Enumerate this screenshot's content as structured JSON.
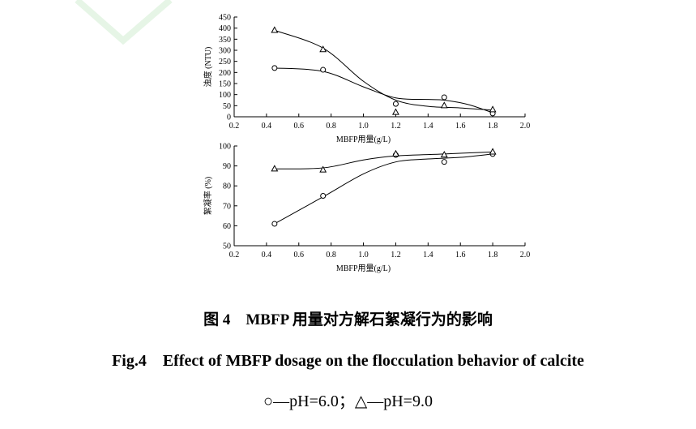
{
  "figure": {
    "caption_cn": "图 4　MBFP 用量对方解石絮凝行为的影响",
    "caption_en": "Fig.4　Effect of MBFP dosage on the flocculation behavior of calcite",
    "legend_text": "○—pH=6.0；△—pH=9.0"
  },
  "chart_data": [
    {
      "type": "line",
      "xlabel": "MBFP用量(g/L)",
      "ylabel": "浊度 (NTU)",
      "xlim": [
        0.2,
        2.0
      ],
      "ylim": [
        0,
        450
      ],
      "xticks": [
        "0.2",
        "0.4",
        "0.6",
        "0.8",
        "1.0",
        "1.2",
        "1.4",
        "1.6",
        "1.8",
        "2.0"
      ],
      "yticks": [
        "0",
        "50",
        "100",
        "150",
        "200",
        "250",
        "300",
        "350",
        "400",
        "450"
      ],
      "grid": false,
      "series": [
        {
          "name": "pH=6.0",
          "marker": "circle",
          "points": [
            [
              0.45,
              220
            ],
            [
              0.75,
              212
            ],
            [
              1.2,
              58
            ],
            [
              1.5,
              88
            ],
            [
              1.8,
              15
            ]
          ],
          "curve": [
            [
              0.45,
              220
            ],
            [
              0.75,
              205
            ],
            [
              1.0,
              135
            ],
            [
              1.2,
              85
            ],
            [
              1.4,
              78
            ],
            [
              1.5,
              75
            ],
            [
              1.65,
              55
            ],
            [
              1.8,
              18
            ]
          ]
        },
        {
          "name": "pH=9.0",
          "marker": "triangle",
          "points": [
            [
              0.45,
              390
            ],
            [
              0.75,
              303
            ],
            [
              1.2,
              20
            ],
            [
              1.5,
              50
            ],
            [
              1.8,
              32
            ]
          ],
          "curve": [
            [
              0.45,
              390
            ],
            [
              0.75,
              310
            ],
            [
              1.0,
              160
            ],
            [
              1.2,
              75
            ],
            [
              1.4,
              47
            ],
            [
              1.6,
              40
            ],
            [
              1.8,
              30
            ]
          ]
        }
      ]
    },
    {
      "type": "line",
      "xlabel": "MBFP用量(g/L)",
      "ylabel": "絮凝率 (%)",
      "xlim": [
        0.2,
        2.0
      ],
      "ylim": [
        50,
        100
      ],
      "xticks": [
        "0.2",
        "0.4",
        "0.6",
        "0.8",
        "1.0",
        "1.2",
        "1.4",
        "1.6",
        "1.8",
        "2.0"
      ],
      "yticks": [
        "50",
        "60",
        "70",
        "80",
        "90",
        "100"
      ],
      "grid": false,
      "series": [
        {
          "name": "pH=6.0",
          "marker": "circle",
          "points": [
            [
              0.45,
              61
            ],
            [
              0.75,
              75
            ],
            [
              1.2,
              95.5
            ],
            [
              1.5,
              92
            ],
            [
              1.8,
              96
            ]
          ],
          "curve": [
            [
              0.45,
              61
            ],
            [
              0.75,
              74.5
            ],
            [
              1.0,
              86
            ],
            [
              1.2,
              92
            ],
            [
              1.4,
              93.5
            ],
            [
              1.6,
              94.3
            ],
            [
              1.8,
              96
            ]
          ]
        },
        {
          "name": "pH=9.0",
          "marker": "triangle",
          "points": [
            [
              0.45,
              88.5
            ],
            [
              0.75,
              88
            ],
            [
              1.2,
              96
            ],
            [
              1.5,
              95.5
            ],
            [
              1.8,
              97
            ]
          ],
          "curve": [
            [
              0.45,
              88.5
            ],
            [
              0.75,
              89
            ],
            [
              1.0,
              93
            ],
            [
              1.2,
              95
            ],
            [
              1.5,
              96
            ],
            [
              1.8,
              97
            ]
          ]
        }
      ]
    }
  ]
}
